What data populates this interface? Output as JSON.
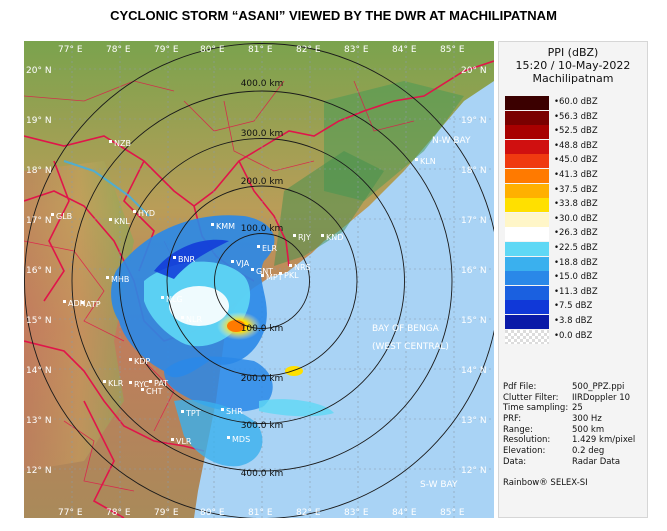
{
  "title": "CYCLONIC STORM “ASANI” VIEWED BY THE DWR AT MACHILIPATNAM",
  "map": {
    "longitude_labels": [
      "77° E",
      "78° E",
      "79° E",
      "80° E",
      "81° E",
      "82° E",
      "83° E",
      "84° E",
      "85° E"
    ],
    "latitude_labels": [
      "20° N",
      "19° N",
      "18° N",
      "17° N",
      "16° N",
      "15° N",
      "14° N",
      "13° N",
      "12° N"
    ],
    "range_rings": [
      "100.0 km",
      "200.0 km",
      "300.0 km",
      "400.0 km"
    ],
    "station_labels": [
      "NZB",
      "KMM",
      "BNR",
      "VJA",
      "GNT",
      "ELR",
      "RJY",
      "KND",
      "NRS",
      "PKL",
      "MPT",
      "NLR",
      "ATP",
      "KDP",
      "CHT",
      "TPT",
      "SHR",
      "MDS",
      "VLR",
      "KLR",
      "RYC",
      "ADN",
      "MHB",
      "NLG",
      "GLB",
      "HYD",
      "KNL",
      "KLN",
      "PAT"
    ],
    "sea_labels": [
      "N-W BAY",
      "BAY OF BENGA",
      "(WEST CENTRAL)",
      "S-W BAY"
    ],
    "colors": {
      "land_low": "#4a9a55",
      "land_mid": "#b7a05c",
      "land_high": "#c9745c",
      "sea": "#a9d3f5",
      "boundary": "#e0154a",
      "ring": "#1a1a1a"
    }
  },
  "panel": {
    "header_line1": "PPI (dBZ)",
    "header_line2": "15:20 / 10-May-2022",
    "header_line3": "Machilipatnam",
    "legend": [
      {
        "label": "60.0 dBZ",
        "color": "#3b0000"
      },
      {
        "label": "56.3 dBZ",
        "color": "#7a0000"
      },
      {
        "label": "52.5 dBZ",
        "color": "#a80000"
      },
      {
        "label": "48.8 dBZ",
        "color": "#d01010"
      },
      {
        "label": "45.0 dBZ",
        "color": "#f03a10"
      },
      {
        "label": "41.3 dBZ",
        "color": "#ff7a00"
      },
      {
        "label": "37.5 dBZ",
        "color": "#ffb000"
      },
      {
        "label": "33.8 dBZ",
        "color": "#ffe000"
      },
      {
        "label": "30.0 dBZ",
        "color": "#fff6c8"
      },
      {
        "label": "26.3 dBZ",
        "color": "#ffffff"
      },
      {
        "label": "22.5 dBZ",
        "color": "#5fd8f5"
      },
      {
        "label": "18.8 dBZ",
        "color": "#3ab0ee"
      },
      {
        "label": "15.0 dBZ",
        "color": "#2a88e8"
      },
      {
        "label": "11.3 dBZ",
        "color": "#1a60e0"
      },
      {
        "label": "7.5 dBZ",
        "color": "#1038d8"
      },
      {
        "label": "3.8 dBZ",
        "color": "#0a1aa8"
      },
      {
        "label": "0.0 dBZ",
        "color": "#0a0a70"
      }
    ],
    "info": [
      {
        "key": "Pdf File:",
        "value": "500_PPZ.ppi"
      },
      {
        "key": "Clutter Filter:",
        "value": "IIRDoppler 10"
      },
      {
        "key": "Time sampling:",
        "value": "25"
      },
      {
        "key": "PRF:",
        "value": "300 Hz"
      },
      {
        "key": "Range:",
        "value": "500 km"
      },
      {
        "key": "Resolution:",
        "value": "1.429 km/pixel"
      },
      {
        "key": "Elevation:",
        "value": "0.2 deg"
      },
      {
        "key": "Data:",
        "value": "Radar Data"
      }
    ],
    "footer": "Rainbow® SELEX-SI"
  }
}
